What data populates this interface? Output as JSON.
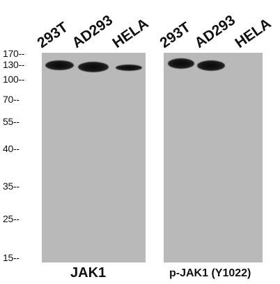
{
  "panels": [
    {
      "title": "JAK1",
      "lanes": [
        "293T",
        "AD293",
        "HELA"
      ],
      "bands": [
        {
          "lane": "293T",
          "marker": "130",
          "intensity": 1.0
        },
        {
          "lane": "AD293",
          "marker": "130",
          "intensity": 0.95
        },
        {
          "lane": "HELA",
          "marker": "130",
          "intensity": 0.8
        }
      ]
    },
    {
      "title": "p-JAK1 (Y1022)",
      "lanes": [
        "293T",
        "AD293",
        "HELA"
      ],
      "bands": [
        {
          "lane": "293T",
          "marker": "130",
          "intensity": 1.0
        },
        {
          "lane": "AD293",
          "marker": "130",
          "intensity": 0.95
        }
      ]
    }
  ],
  "mw_markers": [
    "170--",
    "130--",
    "100--",
    "70--",
    "55--",
    "40--",
    "35--",
    "25--",
    "15--"
  ],
  "colors": {
    "membrane": "#b9b9b9",
    "band": "#111111",
    "text": "#111111",
    "background": "#ffffff"
  }
}
